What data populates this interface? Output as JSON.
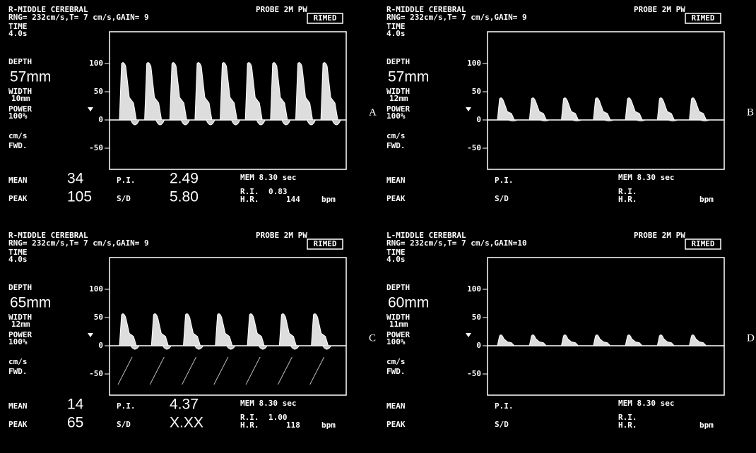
{
  "panels": [
    {
      "letter": "A",
      "vessel": "R-MIDDLE CEREBRAL",
      "probe": "PROBE 2M PW",
      "settings": "RNG= 232cm/s,T= 7 cm/s,GAIN= 9",
      "brand": "RIMED",
      "time_label": "TIME",
      "time": "4.0s",
      "depth_label": "DEPTH",
      "depth": "57mm",
      "width_label": "WIDTH",
      "width": "10mm",
      "power_label": "POWER",
      "power": "100%",
      "unit": "cm/s",
      "direction": "FWD.",
      "axis_ticks": [
        100,
        50,
        0,
        -50
      ],
      "mean_label": "MEAN",
      "mean": "34",
      "peak_label": "PEAK",
      "peak": "105",
      "pi_label": "P.I.",
      "pi": "2.49",
      "sd_label": "S/D",
      "sd": "5.80",
      "mem": "MEM 8.30 sec",
      "ri_label": "R.I.",
      "ri": "0.83",
      "hr_label": "H.R.",
      "hr": "144",
      "bpm": "bpm"
    },
    {
      "letter": "B",
      "vessel": "R-MIDDLE CEREBRAL",
      "probe": "PROBE 2M PW",
      "settings": "RNG= 232cm/s,T= 7 cm/s,GAIN= 9",
      "brand": "RIMED",
      "time_label": "TIME",
      "time": "4.0s",
      "depth_label": "DEPTH",
      "depth": "57mm",
      "width_label": "WIDTH",
      "width": "12mm",
      "power_label": "POWER",
      "power": "100%",
      "unit": "cm/s",
      "direction": "FWD.",
      "axis_ticks": [
        100,
        50,
        0,
        -50
      ],
      "mean_label": "MEAN",
      "peak_label": "PEAK",
      "pi_label": "P.I.",
      "sd_label": "S/D",
      "mem": "MEM 8.30 sec",
      "ri_label": "R.I.",
      "hr_label": "H.R.",
      "bpm": "bpm"
    },
    {
      "letter": "C",
      "vessel": "R-MIDDLE CEREBRAL",
      "probe": "PROBE 2M PW",
      "settings": "RNG= 232cm/s,T= 7 cm/s,GAIN= 9",
      "brand": "RIMED",
      "time_label": "TIME",
      "time": "4.0s",
      "depth_label": "DEPTH",
      "depth": "65mm",
      "width_label": "WIDTH",
      "width": "12mm",
      "power_label": "POWER",
      "power": "100%",
      "unit": "cm/s",
      "direction": "FWD.",
      "axis_ticks": [
        100,
        50,
        0,
        -50
      ],
      "mean_label": "MEAN",
      "mean": "14",
      "peak_label": "PEAK",
      "peak": "65",
      "pi_label": "P.I.",
      "pi": "4.37",
      "sd_label": "S/D",
      "sd": "X.XX",
      "mem": "MEM 8.30 sec",
      "ri_label": "R.I.",
      "ri": "1.00",
      "hr_label": "H.R.",
      "hr": "118",
      "bpm": "bpm"
    },
    {
      "letter": "D",
      "vessel": "L-MIDDLE CEREBRAL",
      "probe": "PROBE 2M PW",
      "settings": "RNG= 232cm/s,T= 7 cm/s,GAIN=10",
      "brand": "RIMED",
      "time_label": "TIME",
      "time": "4.0s",
      "depth_label": "DEPTH",
      "depth": "60mm",
      "width_label": "WIDTH",
      "width": "11mm",
      "power_label": "POWER",
      "power": "100%",
      "unit": "cm/s",
      "direction": "FWD.",
      "axis_ticks": [
        100,
        50,
        0,
        -50
      ],
      "mean_label": "MEAN",
      "peak_label": "PEAK",
      "pi_label": "P.I.",
      "sd_label": "S/D",
      "mem": "MEM 8.30 sec",
      "ri_label": "R.I.",
      "hr_label": "H.R.",
      "bpm": "bpm"
    }
  ]
}
